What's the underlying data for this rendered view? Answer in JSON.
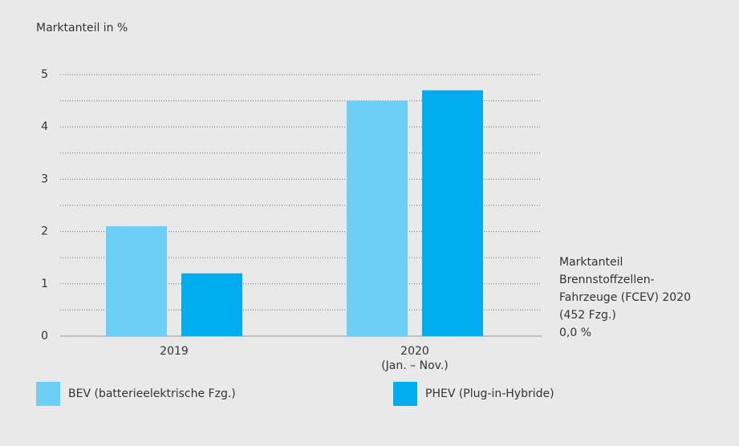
{
  "chart_data": {
    "type": "bar",
    "y_axis_label": "Marktanteil in %",
    "categories": [
      "2019",
      "2020"
    ],
    "category_notes": [
      null,
      "(Jan. – Nov.)"
    ],
    "series": [
      {
        "name": "BEV (batterieelektrische Fzg.)",
        "color": "#6dcff6",
        "values": [
          2.1,
          4.5
        ]
      },
      {
        "name": "PHEV (Plug-in-Hybride)",
        "color": "#00aeef",
        "values": [
          1.2,
          4.7
        ]
      }
    ],
    "ylim": [
      0,
      5
    ],
    "yticks": [
      0,
      1,
      2,
      3,
      4,
      5
    ],
    "minor_grid": [
      0.5,
      1.5,
      2.5,
      3.5,
      4.5
    ],
    "grid": true,
    "annotation": [
      "Marktanteil",
      "Brennstoffzellen-",
      "Fahrzeuge (FCEV) 2020",
      "(452 Fzg.)",
      "0,0 %"
    ]
  }
}
